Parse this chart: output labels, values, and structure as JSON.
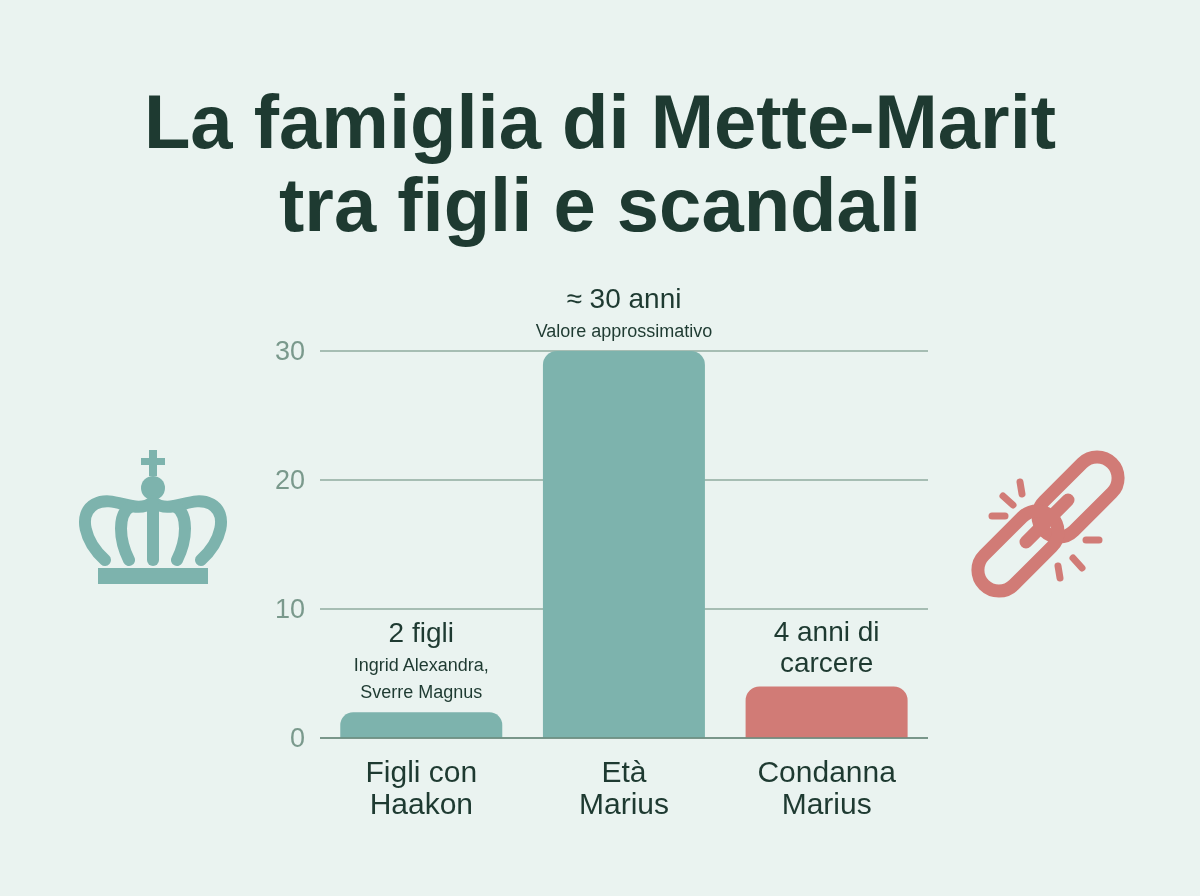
{
  "chart_data": {
    "type": "bar",
    "title": "La famiglia di Mette-Marit\ntra figli e scandali",
    "categories": [
      "Figli con\nHaakon",
      "Età\nMarius",
      "Condanna\nMarius"
    ],
    "values": [
      2,
      30,
      4
    ],
    "colors": [
      "#7db3ad",
      "#7db3ad",
      "#d17b76"
    ],
    "ylim": [
      0,
      30
    ],
    "yticks": [
      0,
      10,
      20,
      30
    ],
    "grid": "y",
    "value_labels": [
      "2 figli",
      "≈ 30 anni",
      "4 anni di\ncarcere"
    ],
    "annotations": [
      {
        "text": "Ingrid Alexandra,\nSverre Magnus",
        "x": "Figli con\nHaakon",
        "y": 2
      },
      {
        "text": "Valore approssimativo",
        "x": "Età\nMarius",
        "y": 30
      }
    ]
  }
}
